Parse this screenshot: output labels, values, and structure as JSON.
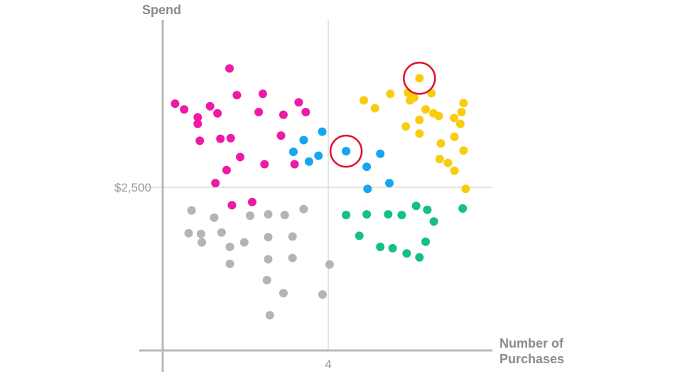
{
  "chart_data": {
    "type": "scatter",
    "title": "",
    "xlabel": "Number of Purchases",
    "ylabel": "Spend",
    "x_tick_label": "4",
    "y_tick_label": "$2,500",
    "x_ref": 4,
    "y_ref": 2500,
    "xlim": [
      0,
      8
    ],
    "ylim": [
      0,
      5000
    ],
    "grid": false,
    "legend": "none",
    "series": [
      {
        "color": "#ee1aa6",
        "points": [
          [
            0.3,
            3790
          ],
          [
            0.52,
            3700
          ],
          [
            0.85,
            3480
          ],
          [
            1.15,
            3750
          ],
          [
            1.62,
            4330
          ],
          [
            1.8,
            3920
          ],
          [
            2.43,
            3940
          ],
          [
            3.3,
            3810
          ],
          [
            0.85,
            3580
          ],
          [
            1.4,
            3250
          ],
          [
            0.9,
            3220
          ],
          [
            1.33,
            3640
          ],
          [
            1.65,
            3260
          ],
          [
            2.33,
            3660
          ],
          [
            2.93,
            3620
          ],
          [
            3.47,
            3660
          ],
          [
            1.88,
            2970
          ],
          [
            2.47,
            2860
          ],
          [
            3.2,
            2860
          ],
          [
            1.55,
            2770
          ],
          [
            1.28,
            2570
          ],
          [
            1.68,
            2230
          ],
          [
            2.17,
            2280
          ],
          [
            2.87,
            3300
          ]
        ]
      },
      {
        "color": "#f9cc0e",
        "points": [
          [
            5.52,
            3940
          ],
          [
            5.95,
            3960
          ],
          [
            6.0,
            3840
          ],
          [
            6.52,
            3950
          ],
          [
            6.1,
            3880
          ],
          [
            6.57,
            3640
          ],
          [
            7.3,
            3800
          ],
          [
            7.07,
            3570
          ],
          [
            7.25,
            3660
          ],
          [
            4.88,
            3840
          ],
          [
            5.15,
            3720
          ],
          [
            6.23,
            3540
          ],
          [
            6.38,
            3700
          ],
          [
            6.7,
            3600
          ],
          [
            7.22,
            3480
          ],
          [
            6.23,
            3330
          ],
          [
            5.9,
            3440
          ],
          [
            7.08,
            3280
          ],
          [
            7.3,
            3070
          ],
          [
            6.72,
            2940
          ],
          [
            7.08,
            2760
          ],
          [
            6.75,
            3180
          ],
          [
            6.92,
            2880
          ],
          [
            7.35,
            2480
          ]
        ]
      },
      {
        "color": "#17a6ee",
        "points": [
          [
            3.42,
            3230
          ],
          [
            3.87,
            3360
          ],
          [
            4.45,
            3060
          ],
          [
            3.78,
            2990
          ],
          [
            3.17,
            3050
          ],
          [
            3.55,
            2900
          ],
          [
            5.28,
            3020
          ],
          [
            4.95,
            2820
          ],
          [
            5.5,
            2570
          ],
          [
            4.97,
            2480
          ]
        ]
      },
      {
        "color": "#16bf86",
        "points": [
          [
            4.45,
            2080
          ],
          [
            4.95,
            2090
          ],
          [
            5.47,
            2090
          ],
          [
            5.8,
            2080
          ],
          [
            6.42,
            2160
          ],
          [
            6.15,
            2220
          ],
          [
            6.58,
            1980
          ],
          [
            4.77,
            1760
          ],
          [
            5.28,
            1590
          ],
          [
            5.58,
            1570
          ],
          [
            5.92,
            1490
          ],
          [
            6.23,
            1430
          ],
          [
            6.38,
            1670
          ],
          [
            7.28,
            2180
          ]
        ]
      },
      {
        "color": "#b4b4b4",
        "points": [
          [
            0.7,
            2150
          ],
          [
            1.25,
            2040
          ],
          [
            2.12,
            2070
          ],
          [
            2.56,
            2090
          ],
          [
            2.96,
            2080
          ],
          [
            3.42,
            2170
          ],
          [
            0.63,
            1800
          ],
          [
            0.93,
            1790
          ],
          [
            1.43,
            1810
          ],
          [
            1.98,
            1660
          ],
          [
            2.56,
            1740
          ],
          [
            3.15,
            1750
          ],
          [
            0.95,
            1660
          ],
          [
            1.63,
            1590
          ],
          [
            2.56,
            1400
          ],
          [
            3.15,
            1420
          ],
          [
            4.05,
            1320
          ],
          [
            1.63,
            1330
          ],
          [
            2.53,
            1080
          ],
          [
            2.93,
            880
          ],
          [
            3.88,
            860
          ],
          [
            2.6,
            540
          ]
        ]
      }
    ],
    "highlighted_points": [
      [
        4.45,
        3060
      ],
      [
        6.23,
        4180
      ]
    ]
  }
}
